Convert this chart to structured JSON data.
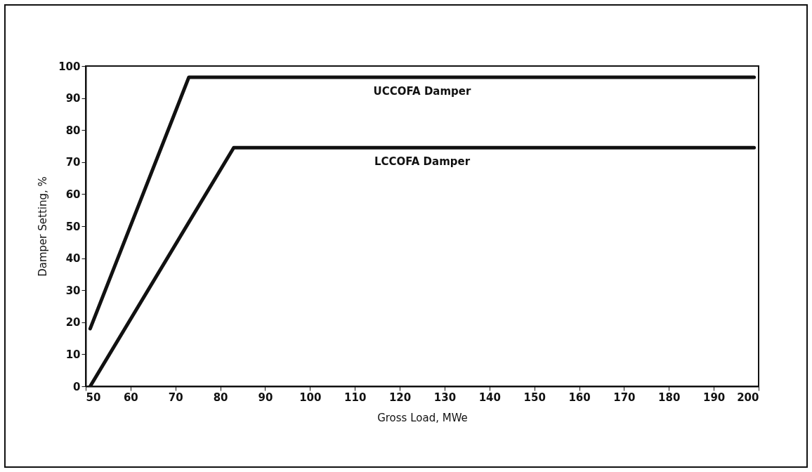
{
  "chart_data": {
    "type": "line",
    "xlabel": "Gross Load, MWe",
    "ylabel": "Damper Setting, %",
    "xlim": [
      50,
      200
    ],
    "xticks": [
      50,
      60,
      70,
      80,
      90,
      100,
      110,
      120,
      130,
      140,
      150,
      160,
      170,
      180,
      190,
      200
    ],
    "ylim": [
      0,
      100
    ],
    "yticks": [
      0,
      10,
      20,
      30,
      40,
      50,
      60,
      70,
      80,
      90,
      100
    ],
    "grid": false,
    "legend": false,
    "line_style": "solid",
    "series": [
      {
        "name": "UCCOFA Damper",
        "color": "#111111",
        "x": [
          51,
          73,
          199
        ],
        "values": [
          18,
          96.5,
          96.5
        ]
      },
      {
        "name": "LCCOFA Damper",
        "color": "#111111",
        "x": [
          51,
          83,
          199
        ],
        "values": [
          0,
          74.5,
          74.5
        ]
      }
    ]
  }
}
